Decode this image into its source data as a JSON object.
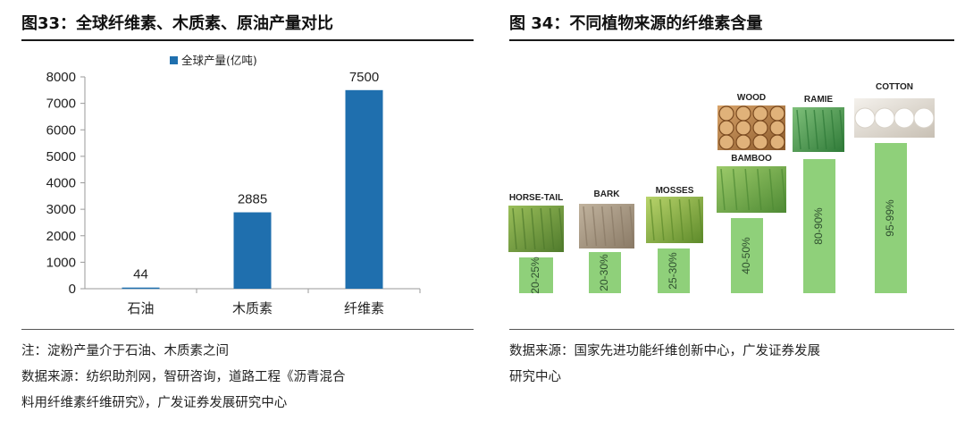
{
  "left": {
    "title": "图33：全球纤维素、木质素、原油产量对比",
    "note_line1": "注：淀粉产量介于石油、木质素之间",
    "note_line2": "数据来源：纺织助剂网，智研咨询，道路工程《沥青混合",
    "note_line3": "料用纤维素纤维研究》，广发证券发展研究中心"
  },
  "right": {
    "title": "图 34：不同植物来源的纤维素含量",
    "note_line1": "数据来源：国家先进功能纤维创新中心，广发证券发展",
    "note_line2": "研究中心"
  },
  "colors": {
    "bar": "#1f6fae",
    "green_bar": "#8fd07a",
    "axis": "#9a9a9a"
  },
  "chart_data": [
    {
      "type": "bar",
      "categories": [
        "石油",
        "木质素",
        "纤维素"
      ],
      "series": [
        {
          "name": "全球产量(亿吨)",
          "values": [
            44,
            2885,
            7500
          ]
        }
      ],
      "data_labels": [
        "44",
        "2885",
        "7500"
      ],
      "ylim": [
        0,
        8000
      ],
      "yticks": [
        "0",
        "1000",
        "2000",
        "3000",
        "4000",
        "5000",
        "6000",
        "7000",
        "8000"
      ],
      "legend_position": "top-center",
      "grid": false
    },
    {
      "type": "bar",
      "categories": [
        "HORSE-TAIL",
        "BARK",
        "MOSSES",
        "BAMBOO",
        "WOOD",
        "RAMIE",
        "COTTON"
      ],
      "category_labels": [
        "HORSE-TAIL",
        "BARK",
        "MOSSES",
        "BAMBOO",
        "WOOD",
        "RAMIE",
        "COTTON"
      ],
      "pct_labels": [
        "20-25%",
        "20-30%",
        "25-30%",
        "40-50%",
        "",
        "80-90%",
        "95-99%"
      ],
      "ranges": [
        [
          20,
          25
        ],
        [
          20,
          30
        ],
        [
          25,
          30
        ],
        [
          40,
          50
        ],
        [],
        [
          80,
          90
        ],
        [
          95,
          99
        ]
      ],
      "icons": [
        "horsetail-photo",
        "bark-photo",
        "mosses-photo",
        "bamboo-photo",
        "wood-photo",
        "ramie-photo",
        "cotton-photo"
      ]
    }
  ]
}
